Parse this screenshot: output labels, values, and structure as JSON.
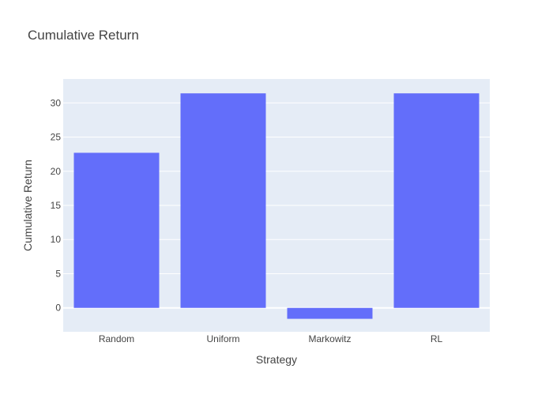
{
  "chart_data": {
    "type": "bar",
    "title": "Cumulative Return",
    "xlabel": "Strategy",
    "ylabel": "Cumulative Return",
    "categories": [
      "Random",
      "Uniform",
      "Markowitz",
      "RL"
    ],
    "values": [
      22.7,
      31.4,
      -1.6,
      31.4
    ],
    "ylim": [
      -3.5,
      33.5
    ],
    "yticks": [
      0,
      5,
      10,
      15,
      20,
      25,
      30
    ],
    "grid": true,
    "colors": {
      "bar": "#636efa",
      "plot_bg": "#e5ecf6",
      "grid": "#ffffff"
    }
  }
}
